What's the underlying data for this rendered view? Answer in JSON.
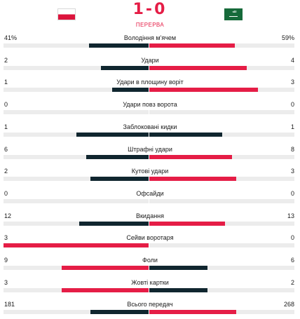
{
  "match": {
    "score": "1-0",
    "period": "ПЕРЕРВА",
    "home_flag_icon": "poland-flag-icon",
    "away_flag_icon": "saudi-arabia-flag-icon"
  },
  "colors": {
    "leader": "#e51d46",
    "trailer": "#10262f",
    "track": "#ececec"
  },
  "stats": [
    {
      "label": "Володіння м'ячем",
      "home": "41%",
      "away": "59%",
      "home_share": 0.41,
      "away_share": 0.59
    },
    {
      "label": "Удари",
      "home": "2",
      "away": "4",
      "home_share": 0.33,
      "away_share": 0.67
    },
    {
      "label": "Удари в площину воріт",
      "home": "1",
      "away": "3",
      "home_share": 0.25,
      "away_share": 0.75
    },
    {
      "label": "Удари повз ворота",
      "home": "0",
      "away": "0",
      "home_share": 0,
      "away_share": 0
    },
    {
      "label": "Заблоковані кидки",
      "home": "1",
      "away": "1",
      "home_share": 0.5,
      "away_share": 0.5
    },
    {
      "label": "Штрафні удари",
      "home": "6",
      "away": "8",
      "home_share": 0.43,
      "away_share": 0.57
    },
    {
      "label": "Кутові удари",
      "home": "2",
      "away": "3",
      "home_share": 0.4,
      "away_share": 0.6
    },
    {
      "label": "Офсайди",
      "home": "0",
      "away": "0",
      "home_share": 0,
      "away_share": 0
    },
    {
      "label": "Вкидання",
      "home": "12",
      "away": "13",
      "home_share": 0.48,
      "away_share": 0.52
    },
    {
      "label": "Сейви воротаря",
      "home": "3",
      "away": "0",
      "home_share": 1,
      "away_share": 0
    },
    {
      "label": "Фоли",
      "home": "9",
      "away": "6",
      "home_share": 0.6,
      "away_share": 0.4
    },
    {
      "label": "Жовті картки",
      "home": "3",
      "away": "2",
      "home_share": 0.6,
      "away_share": 0.4
    },
    {
      "label": "Всього передач",
      "home": "181",
      "away": "268",
      "home_share": 0.4,
      "away_share": 0.6
    }
  ]
}
